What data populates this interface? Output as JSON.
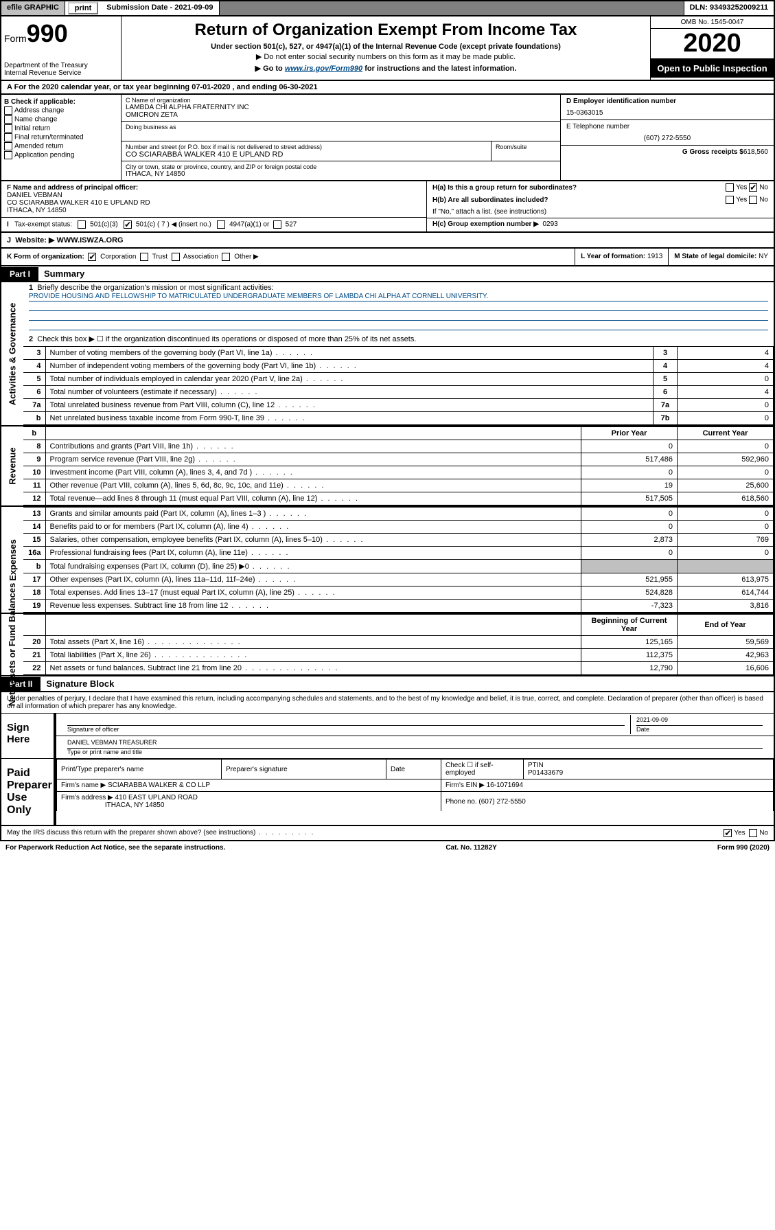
{
  "topbar": {
    "efile": "efile GRAPHIC",
    "print": "print",
    "submission": "Submission Date - 2021-09-09",
    "dln": "DLN: 93493252009211"
  },
  "header": {
    "form_label": "Form",
    "form_num": "990",
    "dept": "Department of the Treasury",
    "irs": "Internal Revenue Service",
    "title": "Return of Organization Exempt From Income Tax",
    "sub1": "Under section 501(c), 527, or 4947(a)(1) of the Internal Revenue Code (except private foundations)",
    "sub2": "▶ Do not enter social security numbers on this form as it may be made public.",
    "sub3_pre": "▶ Go to ",
    "sub3_link": "www.irs.gov/Form990",
    "sub3_post": " for instructions and the latest information.",
    "omb": "OMB No. 1545-0047",
    "year": "2020",
    "open": "Open to Public Inspection"
  },
  "section_a": "For the 2020 calendar year, or tax year beginning 07-01-2020     , and ending 06-30-2021",
  "col_b": {
    "label": "B Check if applicable:",
    "items": [
      "Address change",
      "Name change",
      "Initial return",
      "Final return/terminated",
      "Amended return",
      "Application pending"
    ]
  },
  "col_c": {
    "name_label": "C Name of organization",
    "name1": "LAMBDA CHI ALPHA FRATERNITY INC",
    "name2": "OMICRON ZETA",
    "dba": "Doing business as",
    "addr_label": "Number and street (or P.O. box if mail is not delivered to street address)",
    "room_label": "Room/suite",
    "addr": "CO SCIARABBA WALKER 410 E UPLAND RD",
    "city_label": "City or town, state or province, country, and ZIP or foreign postal code",
    "city": "ITHACA, NY  14850"
  },
  "col_d": {
    "ein_label": "D Employer identification number",
    "ein": "15-0363015",
    "tel_label": "E Telephone number",
    "tel": "(607) 272-5550",
    "gross_label": "G Gross receipts $",
    "gross": "618,560"
  },
  "f": {
    "label": "F  Name and address of principal officer:",
    "name": "DANIEL VEBMAN",
    "addr": "CO SCIARABBA WALKER 410 E UPLAND RD",
    "city": "ITHACA, NY  14850"
  },
  "h": {
    "a_label": "H(a)  Is this a group return for subordinates?",
    "b_label": "H(b)  Are all subordinates included?",
    "b_note": "If \"No,\" attach a list. (see instructions)",
    "c_label": "H(c)  Group exemption number ▶",
    "c_val": "0293"
  },
  "i": {
    "label": "Tax-exempt status:",
    "opts": [
      "501(c)(3)",
      "501(c) ( 7 ) ◀ (insert no.)",
      "4947(a)(1) or",
      "527"
    ]
  },
  "j": {
    "label": "Website: ▶",
    "val": "WWW.ISWZA.ORG"
  },
  "k": {
    "label": "K Form of organization:",
    "opts": [
      "Corporation",
      "Trust",
      "Association",
      "Other ▶"
    ],
    "l_label": "L Year of formation:",
    "l_val": "1913",
    "m_label": "M State of legal domicile:",
    "m_val": "NY"
  },
  "part1": {
    "header": "Part I",
    "title": "Summary",
    "line1_label": "Briefly describe the organization's mission or most significant activities:",
    "line1_text": "PROVIDE HOUSING AND FELLOWSHIP TO MATRICULATED UNDERGRADUATE MEMBERS OF LAMBDA CHI ALPHA AT CORNELL UNIVERSITY.",
    "line2": "Check this box ▶ ☐  if the organization discontinued its operations or disposed of more than 25% of its net assets.",
    "side_gov": "Activities & Governance",
    "side_rev": "Revenue",
    "side_exp": "Expenses",
    "side_net": "Net Assets or Fund Balances",
    "rows_gov": [
      {
        "n": "3",
        "desc": "Number of voting members of the governing body (Part VI, line 1a)",
        "ln": "3",
        "v": "4"
      },
      {
        "n": "4",
        "desc": "Number of independent voting members of the governing body (Part VI, line 1b)",
        "ln": "4",
        "v": "4"
      },
      {
        "n": "5",
        "desc": "Total number of individuals employed in calendar year 2020 (Part V, line 2a)",
        "ln": "5",
        "v": "0"
      },
      {
        "n": "6",
        "desc": "Total number of volunteers (estimate if necessary)",
        "ln": "6",
        "v": "4"
      },
      {
        "n": "7a",
        "desc": "Total unrelated business revenue from Part VIII, column (C), line 12",
        "ln": "7a",
        "v": "0"
      },
      {
        "n": "b",
        "desc": "Net unrelated business taxable income from Form 990-T, line 39",
        "ln": "7b",
        "v": "0"
      }
    ],
    "col_prior": "Prior Year",
    "col_current": "Current Year",
    "rows_rev": [
      {
        "n": "8",
        "desc": "Contributions and grants (Part VIII, line 1h)",
        "p": "0",
        "c": "0"
      },
      {
        "n": "9",
        "desc": "Program service revenue (Part VIII, line 2g)",
        "p": "517,486",
        "c": "592,960"
      },
      {
        "n": "10",
        "desc": "Investment income (Part VIII, column (A), lines 3, 4, and 7d )",
        "p": "0",
        "c": "0"
      },
      {
        "n": "11",
        "desc": "Other revenue (Part VIII, column (A), lines 5, 6d, 8c, 9c, 10c, and 11e)",
        "p": "19",
        "c": "25,600"
      },
      {
        "n": "12",
        "desc": "Total revenue—add lines 8 through 11 (must equal Part VIII, column (A), line 12)",
        "p": "517,505",
        "c": "618,560"
      }
    ],
    "rows_exp": [
      {
        "n": "13",
        "desc": "Grants and similar amounts paid (Part IX, column (A), lines 1–3 )",
        "p": "0",
        "c": "0"
      },
      {
        "n": "14",
        "desc": "Benefits paid to or for members (Part IX, column (A), line 4)",
        "p": "0",
        "c": "0"
      },
      {
        "n": "15",
        "desc": "Salaries, other compensation, employee benefits (Part IX, column (A), lines 5–10)",
        "p": "2,873",
        "c": "769"
      },
      {
        "n": "16a",
        "desc": "Professional fundraising fees (Part IX, column (A), line 11e)",
        "p": "0",
        "c": "0"
      },
      {
        "n": "b",
        "desc": "Total fundraising expenses (Part IX, column (D), line 25) ▶0",
        "p": "",
        "c": "",
        "shade": true
      },
      {
        "n": "17",
        "desc": "Other expenses (Part IX, column (A), lines 11a–11d, 11f–24e)",
        "p": "521,955",
        "c": "613,975"
      },
      {
        "n": "18",
        "desc": "Total expenses. Add lines 13–17 (must equal Part IX, column (A), line 25)",
        "p": "524,828",
        "c": "614,744"
      },
      {
        "n": "19",
        "desc": "Revenue less expenses. Subtract line 18 from line 12",
        "p": "-7,323",
        "c": "3,816"
      }
    ],
    "col_begin": "Beginning of Current Year",
    "col_end": "End of Year",
    "rows_net": [
      {
        "n": "20",
        "desc": "Total assets (Part X, line 16)",
        "p": "125,165",
        "c": "59,569"
      },
      {
        "n": "21",
        "desc": "Total liabilities (Part X, line 26)",
        "p": "112,375",
        "c": "42,963"
      },
      {
        "n": "22",
        "desc": "Net assets or fund balances. Subtract line 21 from line 20",
        "p": "12,790",
        "c": "16,606"
      }
    ]
  },
  "part2": {
    "header": "Part II",
    "title": "Signature Block",
    "text": "Under penalties of perjury, I declare that I have examined this return, including accompanying schedules and statements, and to the best of my knowledge and belief, it is true, correct, and complete. Declaration of preparer (other than officer) is based on all information of which preparer has any knowledge.",
    "sign_here": "Sign Here",
    "sig_officer": "Signature of officer",
    "date": "2021-09-09",
    "date_label": "Date",
    "name": "DANIEL VEBMAN  TREASURER",
    "name_label": "Type or print name and title",
    "paid": "Paid Preparer Use Only",
    "prep_name_label": "Print/Type preparer's name",
    "prep_sig_label": "Preparer's signature",
    "prep_date_label": "Date",
    "check_label": "Check ☐ if self-employed",
    "ptin_label": "PTIN",
    "ptin": "P01433679",
    "firm_name_label": "Firm's name    ▶",
    "firm_name": "SCIARABBA WALKER & CO LLP",
    "firm_ein_label": "Firm's EIN ▶",
    "firm_ein": "16-1071694",
    "firm_addr_label": "Firm's address ▶",
    "firm_addr1": "410 EAST UPLAND ROAD",
    "firm_addr2": "ITHACA, NY  14850",
    "phone_label": "Phone no.",
    "phone": "(607) 272-5550"
  },
  "footer": {
    "discuss": "May the IRS discuss this return with the preparer shown above? (see instructions)",
    "paperwork": "For Paperwork Reduction Act Notice, see the separate instructions.",
    "cat": "Cat. No. 11282Y",
    "form": "Form 990 (2020)"
  }
}
